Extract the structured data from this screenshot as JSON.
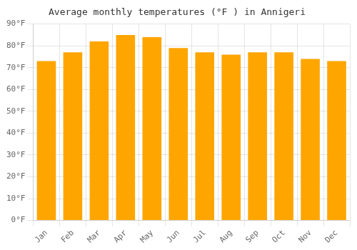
{
  "chart_data": {
    "type": "bar",
    "title": "Average monthly temperatures (°F ) in Annigeri",
    "categories": [
      "Jan",
      "Feb",
      "Mar",
      "Apr",
      "May",
      "Jun",
      "Jul",
      "Aug",
      "Sep",
      "Oct",
      "Nov",
      "Dec"
    ],
    "values": [
      73,
      77,
      82,
      85,
      84,
      79,
      77,
      76,
      77,
      77,
      74,
      73
    ],
    "color": "#FFA500",
    "ylim": [
      0,
      90
    ],
    "yticks": [
      {
        "value": 0,
        "label": "0°F"
      },
      {
        "value": 10,
        "label": "10°F"
      },
      {
        "value": 20,
        "label": "20°F"
      },
      {
        "value": 30,
        "label": "30°F"
      },
      {
        "value": 40,
        "label": "40°F"
      },
      {
        "value": 50,
        "label": "50°F"
      },
      {
        "value": 60,
        "label": "60°F"
      },
      {
        "value": 70,
        "label": "70°F"
      },
      {
        "value": 80,
        "label": "80°F"
      },
      {
        "value": 90,
        "label": "90°F"
      }
    ],
    "grid": true
  }
}
